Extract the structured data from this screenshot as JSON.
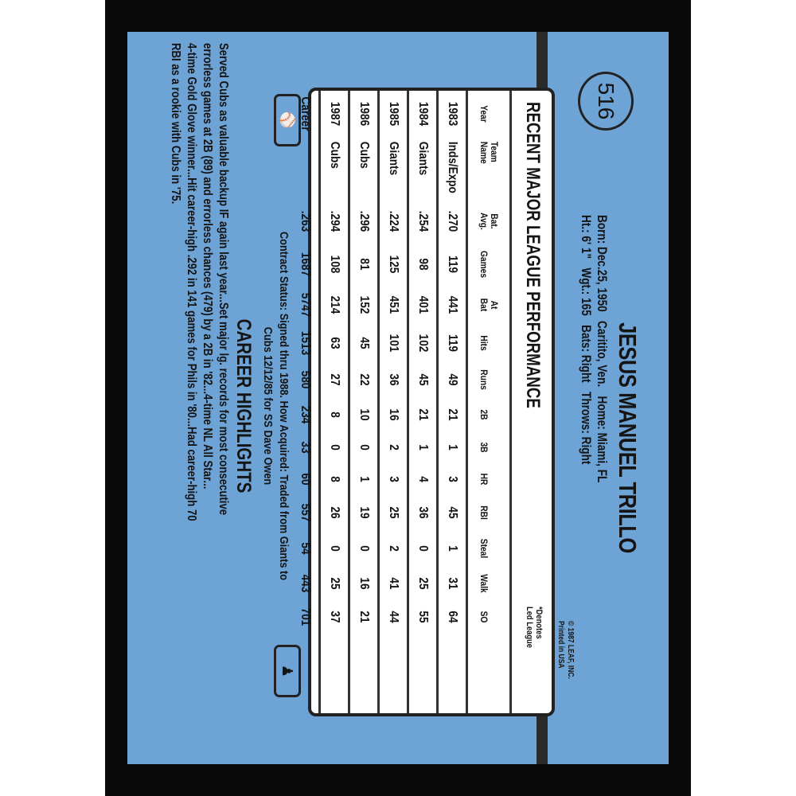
{
  "card_number": "516",
  "player": {
    "name": "JESUS MANUEL TRILLO",
    "bio_line1": "Born: Dec.25, 1950   Caritito, Ven.   Home: Miami, FL",
    "bio_line2": "Ht.: 6' 1\"   Wgt.: 165   Bats: Right   Throws: Right"
  },
  "copyright": [
    "© 1987 LEAF, INC.",
    "Printed in USA"
  ],
  "stats": {
    "title": "RECENT MAJOR LEAGUE PERFORMANCE",
    "note": [
      "*Denotes",
      "Led League"
    ],
    "headers": [
      [
        "",
        "Year"
      ],
      [
        "Team",
        "Name"
      ],
      [
        "Bat.",
        "Avg."
      ],
      [
        "",
        "Games"
      ],
      [
        "At",
        "Bat"
      ],
      [
        "",
        "Hits"
      ],
      [
        "",
        "Runs"
      ],
      [
        "",
        "2B"
      ],
      [
        "",
        "3B"
      ],
      [
        "",
        "HR"
      ],
      [
        "",
        "RBI"
      ],
      [
        "",
        "Steal"
      ],
      [
        "",
        "Walk"
      ],
      [
        "",
        "SO"
      ]
    ],
    "rows": [
      [
        "1983",
        "Inds/Expo",
        ".270",
        "119",
        "441",
        "119",
        "49",
        "21",
        "1",
        "3",
        "45",
        "1",
        "31",
        "64"
      ],
      [
        "1984",
        "Giants",
        ".254",
        "98",
        "401",
        "102",
        "45",
        "21",
        "1",
        "4",
        "36",
        "0",
        "25",
        "55"
      ],
      [
        "1985",
        "Giants",
        ".224",
        "125",
        "451",
        "101",
        "36",
        "16",
        "2",
        "3",
        "25",
        "2",
        "41",
        "44"
      ],
      [
        "1986",
        "Cubs",
        ".296",
        "81",
        "152",
        "45",
        "22",
        "10",
        "0",
        "1",
        "19",
        "0",
        "16",
        "21"
      ],
      [
        "1987",
        "Cubs",
        ".294",
        "108",
        "214",
        "63",
        "27",
        "8",
        "0",
        "8",
        "26",
        "0",
        "25",
        "37"
      ],
      [
        "Career",
        "",
        ".263",
        "1687",
        "5747",
        "1513",
        "580",
        "234",
        "33",
        "60",
        "557",
        "54",
        "443",
        "701"
      ]
    ]
  },
  "contract": [
    "Contract Status: Signed thru 1988. How Acquired: Traded from Giants to",
    "Cubs 12/12/85 for SS Dave Owen"
  ],
  "highlights": {
    "title": "CAREER HIGHLIGHTS",
    "lines": [
      "Served Cubs as valuable backup IF again last year...Set major lg. records for most consecutive",
      "errorless games at 2B (89) and errorless chances (479) by a 2B in '82...4-time NL All Star...",
      "4-time Gold Glove winner...Hit career-high .292 in 141 games for Phils in '80...Had career-high 70",
      "RBI as a rookie with Cubs in '75."
    ]
  },
  "colors": {
    "card": "#6ea3d6",
    "frame": "#0a0a0a"
  }
}
